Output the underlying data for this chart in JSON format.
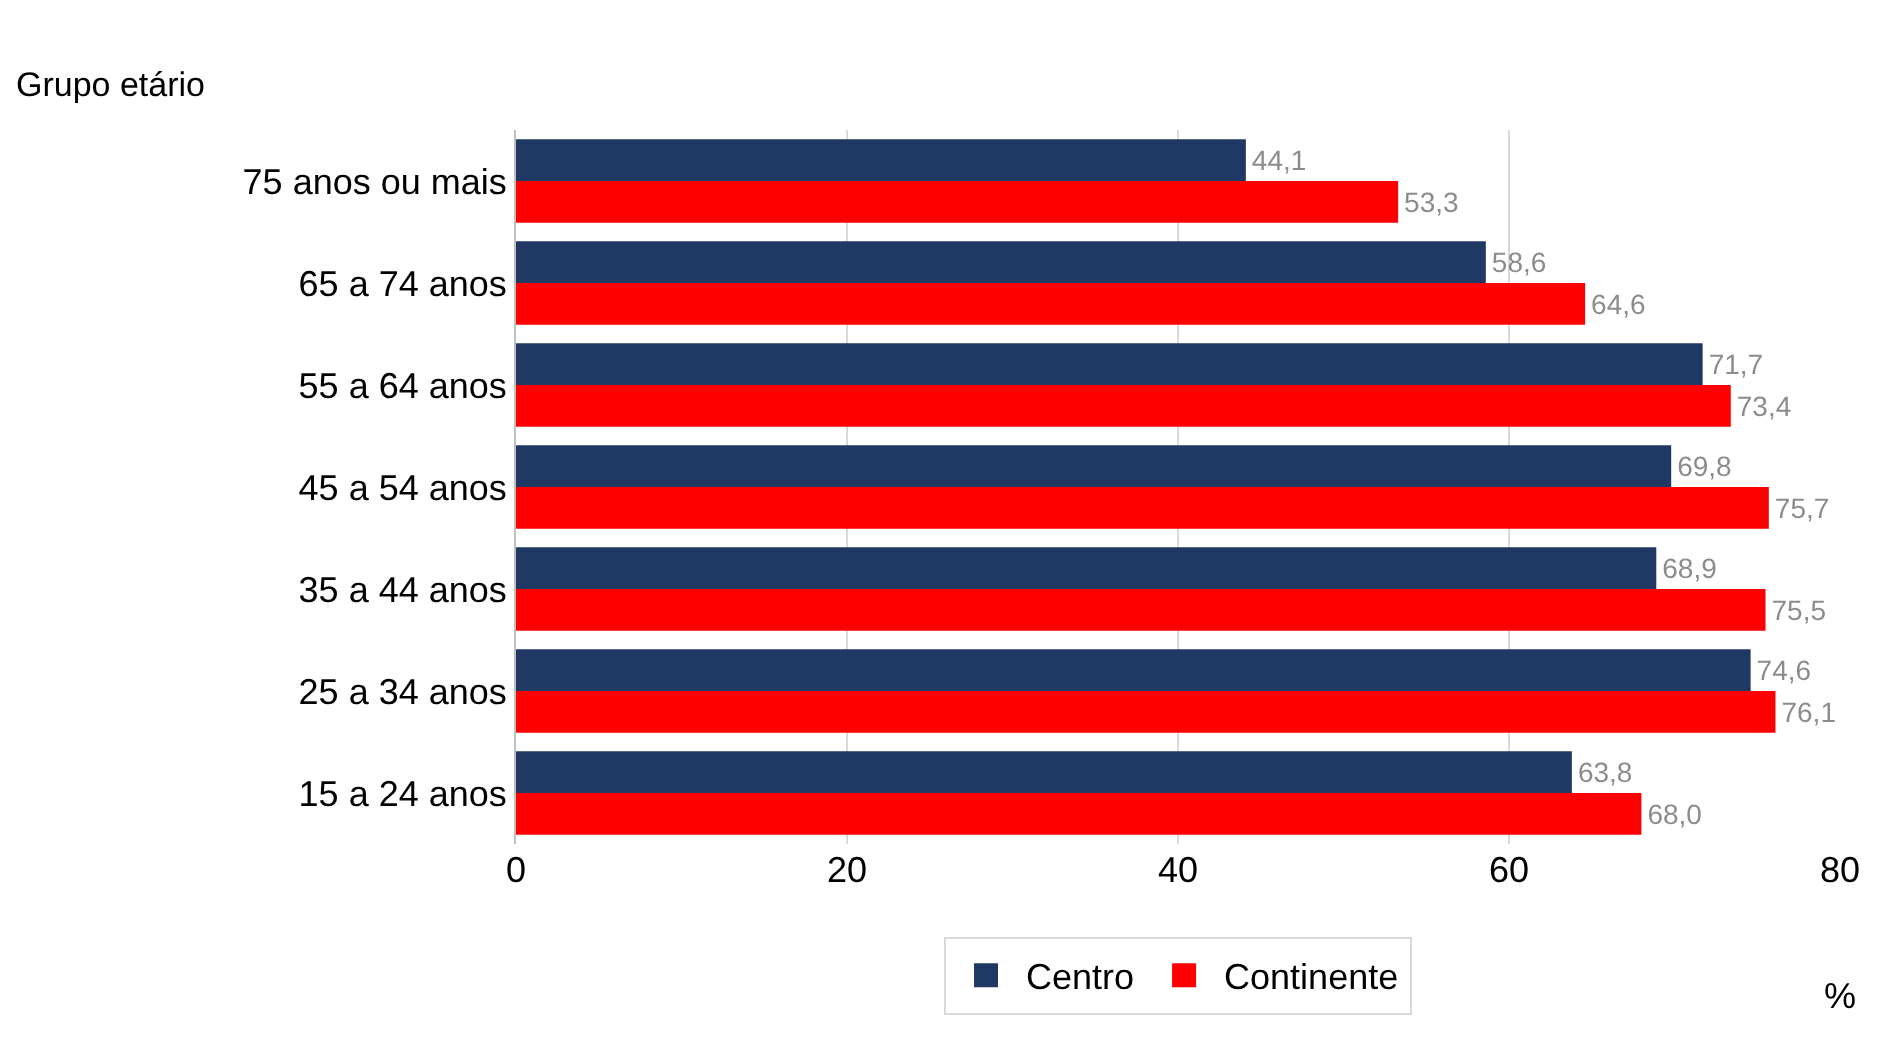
{
  "chart_data": {
    "type": "bar",
    "orientation": "horizontal",
    "ylabel": "Grupo etário",
    "xlabel": "%",
    "categories": [
      "75 anos ou mais",
      "65 a 74 anos",
      "55 a 64 anos",
      "45 a 54 anos",
      "35 a 44 anos",
      "25 a 34 anos",
      "15 a 24 anos"
    ],
    "series": [
      {
        "name": "Centro",
        "color": "#1f3864",
        "values": [
          44.1,
          58.6,
          71.7,
          69.8,
          68.9,
          74.6,
          63.8
        ],
        "value_labels": [
          "44,1",
          "58,6",
          "71,7",
          "69,8",
          "68,9",
          "74,6",
          "63,8"
        ]
      },
      {
        "name": "Continente",
        "color": "#ff0000",
        "values": [
          53.3,
          64.6,
          73.4,
          75.7,
          75.5,
          76.1,
          68.0
        ],
        "value_labels": [
          "53,3",
          "64,6",
          "73,4",
          "75,7",
          "75,5",
          "76,1",
          "68,0"
        ]
      }
    ],
    "xlim": [
      0,
      80
    ],
    "xticks": [
      0,
      20,
      40,
      60,
      80
    ],
    "grid": "x",
    "legend": "bottom"
  }
}
